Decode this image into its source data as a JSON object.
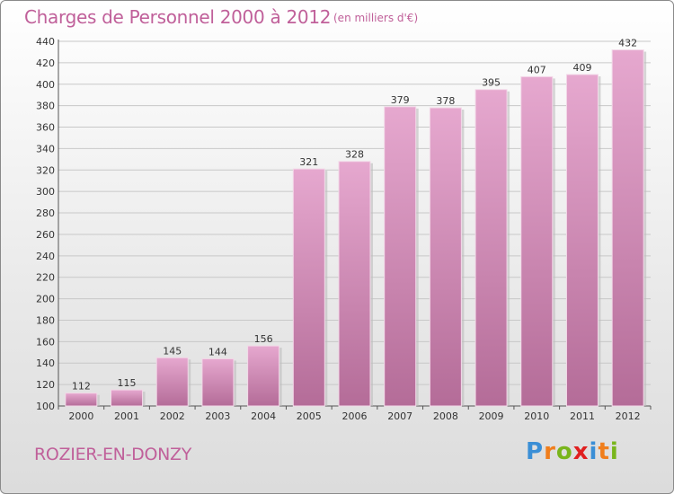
{
  "chart_data": {
    "type": "bar",
    "title": "Charges de Personnel 2000 à 2012",
    "subtitle": "(en milliers d'€)",
    "categories": [
      "2000",
      "2001",
      "2002",
      "2003",
      "2004",
      "2005",
      "2006",
      "2007",
      "2008",
      "2009",
      "2010",
      "2011",
      "2012"
    ],
    "values": [
      112,
      115,
      145,
      144,
      156,
      321,
      328,
      379,
      378,
      395,
      407,
      409,
      432
    ],
    "xlabel": "",
    "ylabel": "",
    "ylim": [
      100,
      440
    ],
    "yticks": [
      100,
      120,
      140,
      160,
      180,
      200,
      220,
      240,
      260,
      280,
      300,
      320,
      340,
      360,
      380,
      400,
      420,
      440
    ],
    "grid": true,
    "bar_color": "#d98ab8"
  },
  "footer": {
    "commune": "ROZIER-EN-DONZY",
    "logo_letters": [
      "P",
      "r",
      "o",
      "x",
      "i",
      "t",
      "i"
    ],
    "logo_colors": [
      "#3b8fd6",
      "#f07e1c",
      "#79b51c",
      "#e02020",
      "#3b8fd6",
      "#f07e1c",
      "#79b51c"
    ]
  }
}
